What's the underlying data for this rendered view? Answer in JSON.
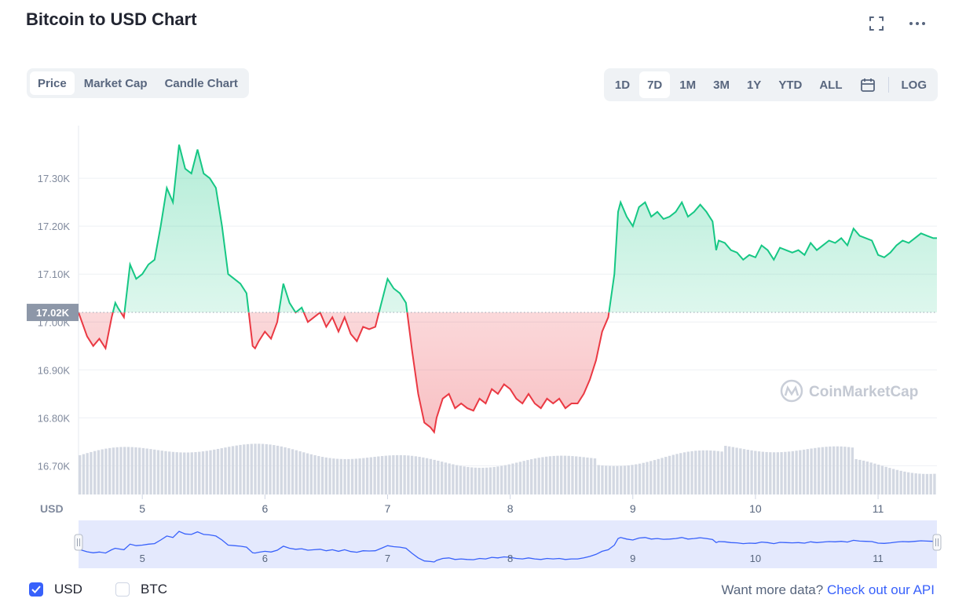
{
  "title": "Bitcoin to USD Chart",
  "top_icons": [
    "fullscreen-icon",
    "more-icon"
  ],
  "chart_tabs": [
    "Price",
    "Market Cap",
    "Candle Chart"
  ],
  "active_chart_tab": "Price",
  "ranges": [
    "1D",
    "7D",
    "1M",
    "3M",
    "1Y",
    "YTD",
    "ALL"
  ],
  "active_range": "7D",
  "calendar_icon": "calendar-icon",
  "log_label": "LOG",
  "colors": {
    "up": "#16c784",
    "down": "#ea3943",
    "volume": "#d3d8e2",
    "nav_line": "#3861fb",
    "nav_fill": "#e4e9fd",
    "price_tag": "#8d97a8"
  },
  "chart_data": {
    "type": "line",
    "title": "Bitcoin to USD Chart",
    "currency_label": "USD",
    "ylim": [
      16640,
      17410
    ],
    "y_ticks": [
      16700,
      16800,
      16900,
      17000,
      17100,
      17200,
      17300
    ],
    "y_tick_labels": [
      "16.70K",
      "16.80K",
      "16.90K",
      "17.00K",
      "17.10K",
      "17.20K",
      "17.30K"
    ],
    "xlim": [
      4.48,
      11.48
    ],
    "x_ticks": [
      5,
      6,
      7,
      8,
      9,
      10,
      11
    ],
    "x_tick_labels": [
      "5",
      "6",
      "7",
      "8",
      "9",
      "10",
      "11"
    ],
    "baseline": 17020,
    "baseline_label": "17.02K",
    "grid": true,
    "watermark": "CoinMarketCap",
    "series": [
      {
        "x": [
          4.48,
          4.55,
          4.6,
          4.65,
          4.7,
          4.75,
          4.78,
          4.8,
          4.85,
          4.9,
          4.95,
          5.0,
          5.05,
          5.1,
          5.15,
          5.2,
          5.25,
          5.3,
          5.35,
          5.4,
          5.45,
          5.5,
          5.55,
          5.6,
          5.65,
          5.7,
          5.75,
          5.8,
          5.85,
          5.9,
          5.92,
          5.95,
          6.0,
          6.05,
          6.1,
          6.15,
          6.2,
          6.25,
          6.3,
          6.35,
          6.4,
          6.45,
          6.5,
          6.55,
          6.6,
          6.65,
          6.7,
          6.75,
          6.8,
          6.85,
          6.9,
          6.95,
          7.0,
          7.05,
          7.1,
          7.15,
          7.2,
          7.25,
          7.3,
          7.35,
          7.38,
          7.4,
          7.45,
          7.5,
          7.55,
          7.6,
          7.65,
          7.7,
          7.75,
          7.8,
          7.85,
          7.9,
          7.95,
          8.0,
          8.05,
          8.1,
          8.15,
          8.2,
          8.25,
          8.3,
          8.35,
          8.4,
          8.45,
          8.5,
          8.55,
          8.6,
          8.65,
          8.7,
          8.75,
          8.8,
          8.85,
          8.88,
          8.9,
          8.95,
          9.0,
          9.05,
          9.1,
          9.15,
          9.2,
          9.25,
          9.3,
          9.35,
          9.4,
          9.45,
          9.5,
          9.55,
          9.6,
          9.65,
          9.68,
          9.7,
          9.75,
          9.8,
          9.85,
          9.9,
          9.95,
          10.0,
          10.05,
          10.1,
          10.15,
          10.2,
          10.25,
          10.3,
          10.35,
          10.4,
          10.45,
          10.5,
          10.55,
          10.6,
          10.65,
          10.7,
          10.75,
          10.8,
          10.85,
          10.9,
          10.95,
          11.0,
          11.05,
          11.1,
          11.15,
          11.2,
          11.25,
          11.3,
          11.35,
          11.4,
          11.45,
          11.48
        ],
        "y": [
          17020,
          16970,
          16950,
          16965,
          16945,
          17010,
          17040,
          17030,
          17010,
          17120,
          17090,
          17100,
          17120,
          17130,
          17200,
          17280,
          17250,
          17370,
          17320,
          17310,
          17360,
          17310,
          17300,
          17280,
          17200,
          17100,
          17090,
          17080,
          17060,
          16950,
          16945,
          16960,
          16980,
          16965,
          17000,
          17080,
          17040,
          17020,
          17030,
          17000,
          17010,
          17020,
          16990,
          17010,
          16980,
          17010,
          16975,
          16960,
          16990,
          16985,
          16990,
          17040,
          17090,
          17070,
          17060,
          17040,
          16940,
          16850,
          16790,
          16780,
          16770,
          16800,
          16840,
          16850,
          16820,
          16830,
          16820,
          16815,
          16840,
          16830,
          16860,
          16850,
          16870,
          16860,
          16840,
          16830,
          16850,
          16830,
          16820,
          16840,
          16830,
          16840,
          16820,
          16830,
          16830,
          16850,
          16880,
          16920,
          16980,
          17010,
          17100,
          17230,
          17250,
          17220,
          17200,
          17240,
          17250,
          17220,
          17230,
          17215,
          17220,
          17230,
          17250,
          17220,
          17230,
          17245,
          17230,
          17210,
          17150,
          17170,
          17165,
          17150,
          17145,
          17130,
          17140,
          17135,
          17160,
          17150,
          17130,
          17155,
          17150,
          17145,
          17150,
          17140,
          17165,
          17150,
          17160,
          17170,
          17165,
          17175,
          17160,
          17195,
          17180,
          17175,
          17170,
          17140,
          17135,
          17145,
          17160,
          17170,
          17165,
          17175,
          17185,
          17180,
          17175,
          17175
        ]
      }
    ],
    "navigator_x_tick_labels": [
      "5",
      "6",
      "7",
      "8",
      "9",
      "10",
      "11"
    ]
  },
  "footer": {
    "usd_label": "USD",
    "btc_label": "BTC",
    "usd_checked": true,
    "btc_checked": false,
    "more_data_text": "Want more data?",
    "api_link_text": "Check out our API"
  }
}
